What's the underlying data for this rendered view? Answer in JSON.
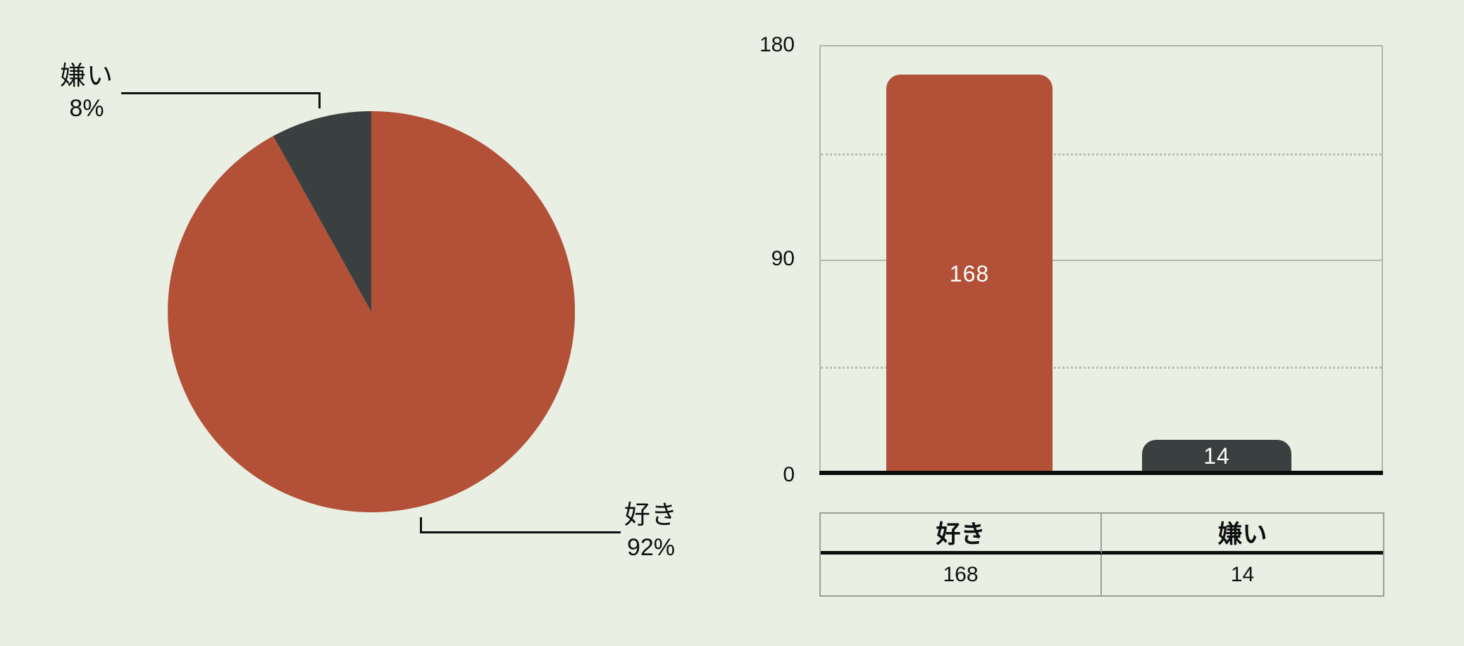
{
  "page": {
    "background_color": "#e9efe3",
    "text_color": "#101010"
  },
  "colors": {
    "like": "#b25138",
    "dislike": "#3a403f",
    "grid_border": "#b2b7ac",
    "axis": "#0b0b0b"
  },
  "chart_data": [
    {
      "type": "pie",
      "labels": [
        "好き",
        "嫌い"
      ],
      "slugs": [
        "like",
        "dislike"
      ],
      "values": [
        168,
        14
      ],
      "percent_values": [
        92,
        8
      ],
      "colors": [
        "#b25138",
        "#3a403f"
      ],
      "start_angle_deg": 0,
      "direction": "clockwise",
      "annotations": [
        {
          "text": "好き",
          "value_text": "92%"
        },
        {
          "text": "嫌い",
          "value_text": "8%"
        }
      ]
    },
    {
      "type": "bar",
      "categories": [
        "好き",
        "嫌い"
      ],
      "slugs": [
        "like",
        "dislike"
      ],
      "values": [
        168,
        14
      ],
      "bar_labels": [
        "168",
        "14"
      ],
      "colors": [
        "#b25138",
        "#3a403f"
      ],
      "ylim": [
        0,
        180
      ],
      "yticks": [
        0,
        90,
        180
      ],
      "ytick_labels": [
        "0",
        "90",
        "180"
      ],
      "gridlines": [
        {
          "value": 135,
          "style": "dotted"
        },
        {
          "value": 90,
          "style": "solid"
        },
        {
          "value": 45,
          "style": "dotted"
        }
      ],
      "legend": "none"
    },
    {
      "type": "table",
      "columns": [
        "好き",
        "嫌い"
      ],
      "rows": [
        [
          "168",
          "14"
        ]
      ]
    }
  ]
}
